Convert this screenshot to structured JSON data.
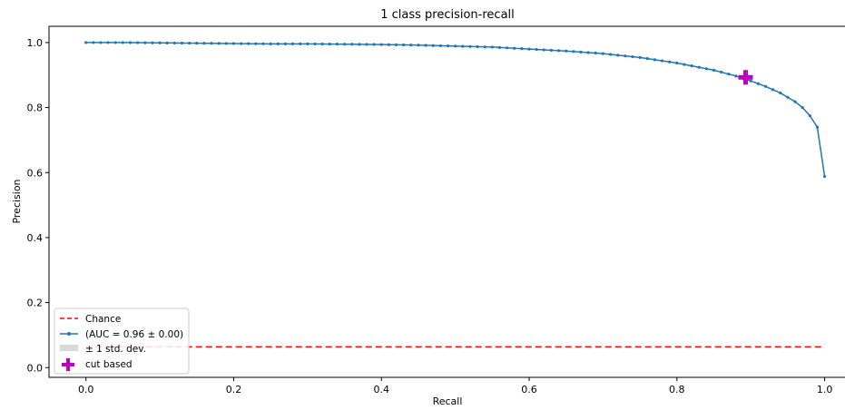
{
  "chart_data": {
    "type": "line",
    "title": "1 class precision-recall",
    "xlabel": "Recall",
    "ylabel": "Precision",
    "xlim": [
      -0.05,
      1.03
    ],
    "ylim": [
      -0.03,
      1.05
    ],
    "xticks": [
      0.0,
      0.2,
      0.4,
      0.6,
      0.8,
      1.0
    ],
    "xtick_labels": [
      "0.0",
      "0.2",
      "0.4",
      "0.6",
      "0.8",
      "1.0"
    ],
    "yticks": [
      0.0,
      0.2,
      0.4,
      0.6,
      0.8,
      1.0
    ],
    "ytick_labels": [
      "0.0",
      "0.2",
      "0.4",
      "0.6",
      "0.8",
      "1.0"
    ],
    "grid": false,
    "legend_position": "bottom-left",
    "series": [
      {
        "name": "Chance",
        "style": "dashed",
        "color": "#ff0000",
        "x": [
          0.0,
          1.0
        ],
        "y": [
          0.064,
          0.064
        ]
      },
      {
        "name": "(AUC = 0.96 ± 0.00)",
        "style": "line-with-dots",
        "color": "#1f77b4",
        "x": [
          0.0,
          0.05,
          0.1,
          0.15,
          0.2,
          0.25,
          0.3,
          0.35,
          0.4,
          0.45,
          0.5,
          0.55,
          0.6,
          0.65,
          0.7,
          0.75,
          0.8,
          0.85,
          0.88,
          0.9,
          0.92,
          0.94,
          0.96,
          0.97,
          0.98,
          0.99,
          1.0
        ],
        "y": [
          1.0,
          1.0,
          0.999,
          0.998,
          0.997,
          0.996,
          0.996,
          0.995,
          0.994,
          0.992,
          0.989,
          0.986,
          0.98,
          0.974,
          0.966,
          0.954,
          0.937,
          0.915,
          0.897,
          0.882,
          0.865,
          0.845,
          0.818,
          0.8,
          0.775,
          0.74,
          0.588
        ]
      },
      {
        "name": "± 1 std. dev.",
        "style": "band",
        "color": "#bfbfbf"
      },
      {
        "name": "cut based",
        "style": "plus-marker",
        "color": "#bf00bf",
        "x": [
          0.893
        ],
        "y": [
          0.893
        ]
      }
    ]
  }
}
